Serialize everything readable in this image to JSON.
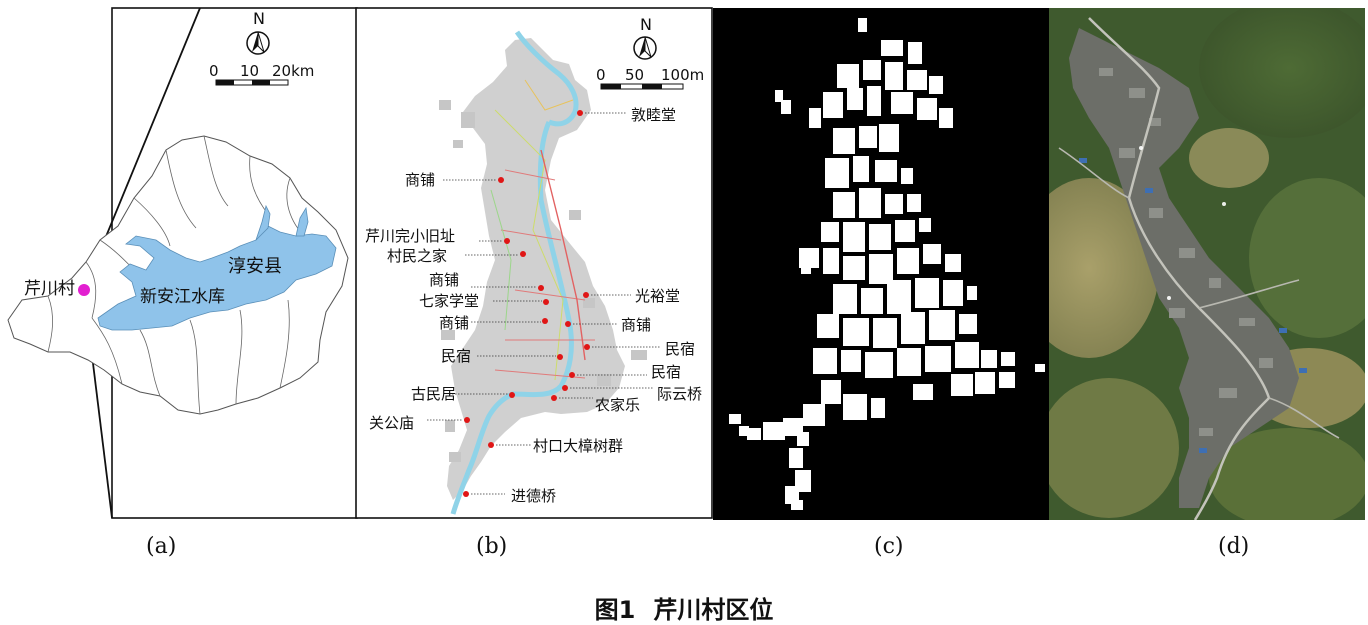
{
  "panel_a": {
    "north": "N",
    "scale": [
      "0",
      "10",
      "20km"
    ],
    "labels": {
      "village": "芹川村",
      "county": "淳安县",
      "reservoir": "新安江水库"
    }
  },
  "panel_b": {
    "north": "N",
    "scale": [
      "0",
      "50",
      "100m"
    ],
    "pois": [
      "敦睦堂",
      "商铺",
      "芹川完小旧址",
      "村民之家",
      "商铺",
      "七家学堂",
      "商铺",
      "光裕堂",
      "商铺",
      "民宿",
      "民宿",
      "民宿",
      "古民居",
      "际云桥",
      "农家乐",
      "关公庙",
      "村口大樟树群",
      "进德桥"
    ]
  },
  "subcaptions": [
    "(a)",
    "(b)",
    "(c)",
    "(d)"
  ],
  "caption": {
    "number": "图1",
    "title": "芹川村区位"
  },
  "colors": {
    "water": "#8fc3ea",
    "poi_dot": "#e01616",
    "village_marker": "#e21fd0",
    "building_gray": "#c9c9c9"
  }
}
